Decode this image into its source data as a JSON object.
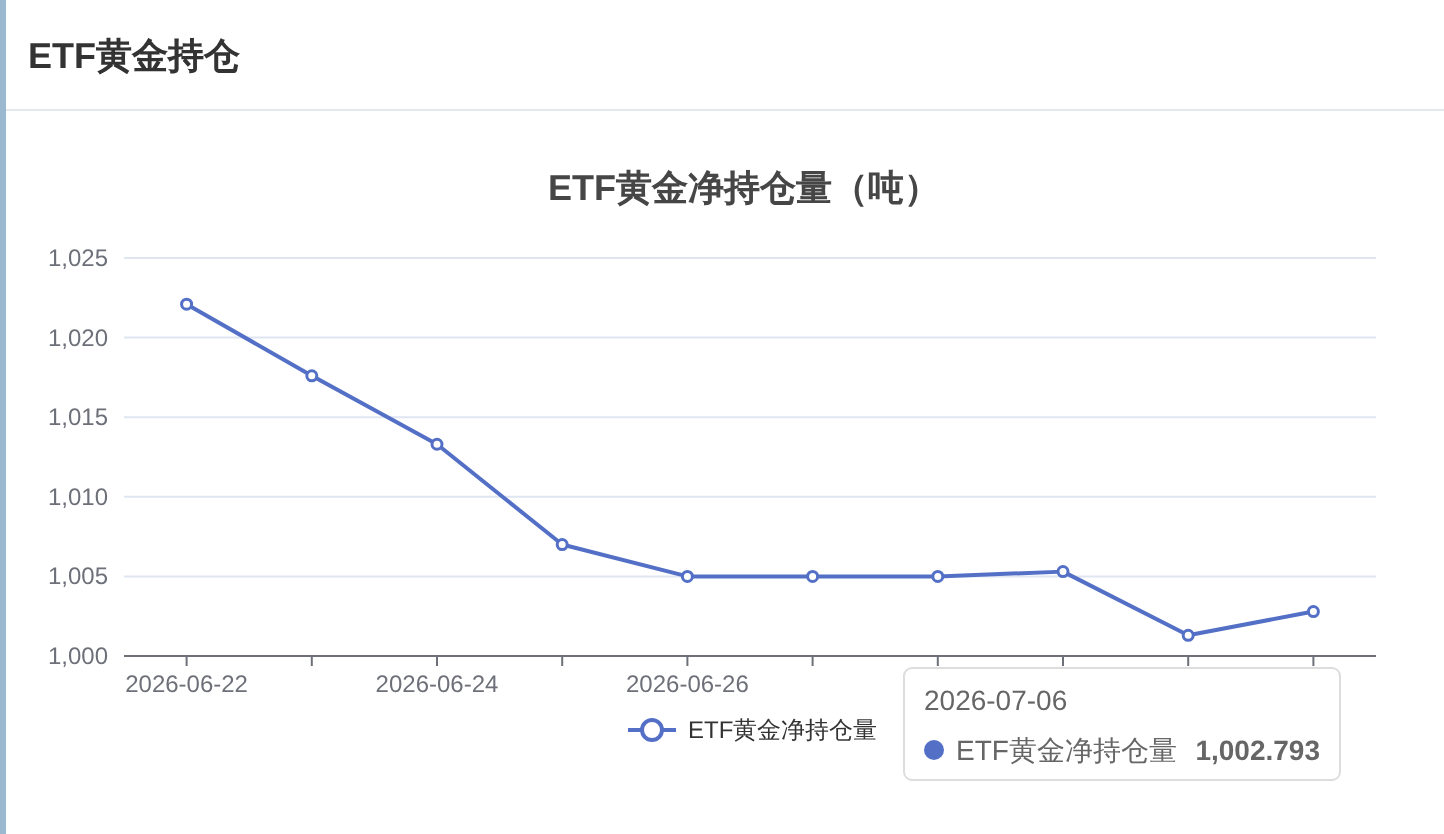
{
  "chart_data": {
    "type": "line",
    "title": "ETF黄金净持仓量（吨）",
    "annotations": [
      "ETF黄金持仓",
      "2026-07-06",
      "1,002.793"
    ],
    "categories": [
      "2026-06-22",
      null,
      "2026-06-24",
      null,
      "2026-06-26",
      null,
      null,
      null,
      null,
      null
    ],
    "series": [
      {
        "name": "ETF黄金净持仓量",
        "color": "#5470c6",
        "values": [
          1022.1,
          1017.6,
          1013.3,
          1007.0,
          1005.0,
          1005.0,
          1005.0,
          1005.3,
          1001.3,
          1002.793
        ]
      }
    ],
    "ylim": [
      1000,
      1025
    ],
    "yticks": [
      {
        "value": 1000,
        "label": "1,000"
      },
      {
        "value": 1005,
        "label": "1,005"
      },
      {
        "value": 1010,
        "label": "1,010"
      },
      {
        "value": 1015,
        "label": "1,015"
      },
      {
        "value": 1020,
        "label": "1,020"
      },
      {
        "value": 1025,
        "label": "1,025"
      }
    ],
    "grid": "y",
    "legend": "bottom",
    "marker": "circle",
    "line_style": "solid"
  }
}
